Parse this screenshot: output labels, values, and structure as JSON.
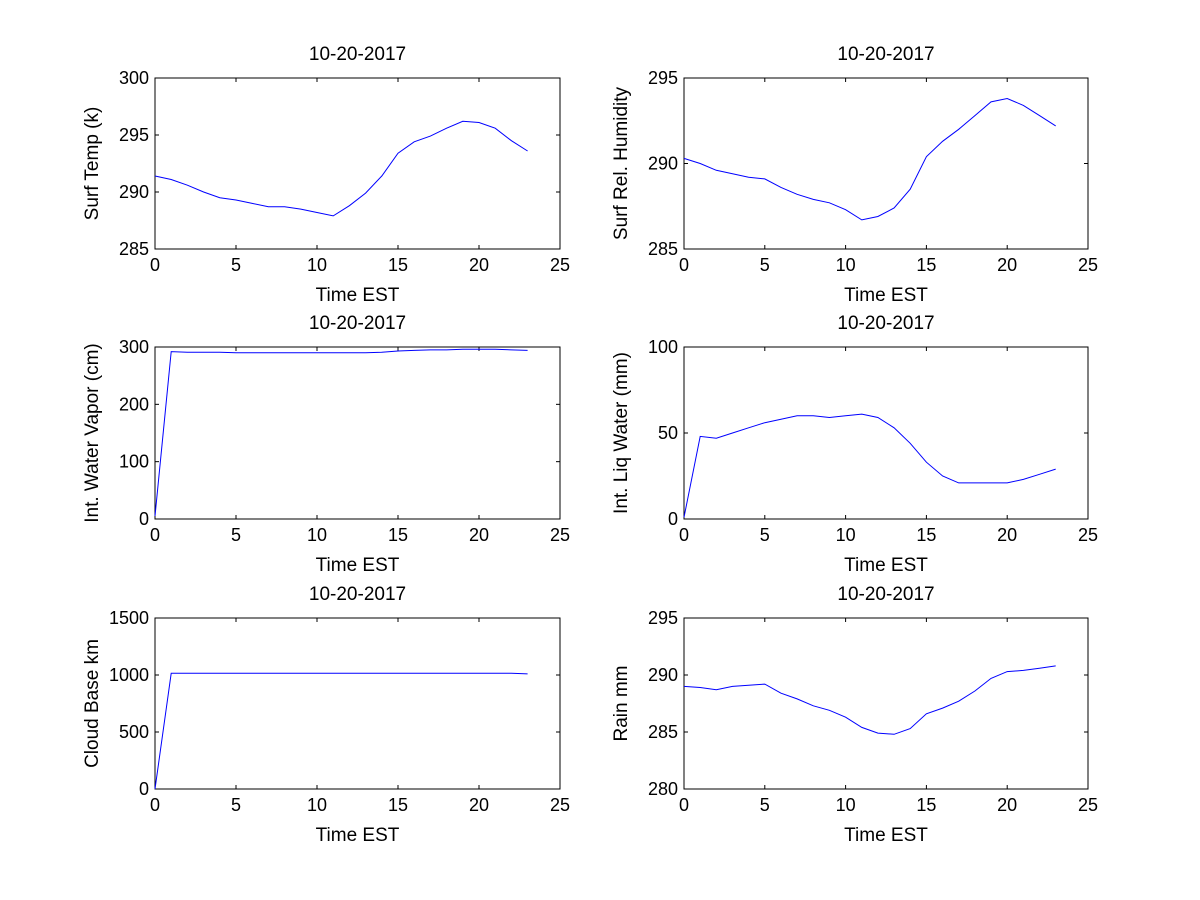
{
  "figure": {
    "background": "#ffffff",
    "line_color": "#0000ff"
  },
  "chart_data": [
    {
      "type": "line",
      "title": "10-20-2017",
      "xlabel": "Time EST",
      "ylabel": "Surf Temp (k)",
      "xlim": [
        0,
        25
      ],
      "ylim": [
        285,
        300
      ],
      "xticks": [
        0,
        5,
        10,
        15,
        20,
        25
      ],
      "yticks": [
        285,
        290,
        295,
        300
      ],
      "grid": false,
      "series": [
        {
          "x": [
            0,
            1,
            2,
            3,
            4,
            5,
            6,
            7,
            8,
            9,
            10,
            11,
            12,
            13,
            14,
            15,
            16,
            17,
            18,
            19,
            20,
            21,
            22,
            23
          ],
          "y": [
            291.4,
            291.1,
            290.6,
            290.0,
            289.5,
            289.3,
            289.0,
            288.7,
            288.7,
            288.5,
            288.2,
            287.9,
            288.8,
            289.9,
            291.4,
            293.4,
            294.4,
            294.9,
            295.6,
            296.2,
            296.1,
            295.6,
            294.5,
            293.6
          ]
        }
      ]
    },
    {
      "type": "line",
      "title": "10-20-2017",
      "xlabel": "Time EST",
      "ylabel": "Surf Rel. Humidity",
      "xlim": [
        0,
        25
      ],
      "ylim": [
        285,
        295
      ],
      "xticks": [
        0,
        5,
        10,
        15,
        20,
        25
      ],
      "yticks": [
        285,
        290,
        295
      ],
      "grid": false,
      "series": [
        {
          "x": [
            0,
            1,
            2,
            3,
            4,
            5,
            6,
            7,
            8,
            9,
            10,
            11,
            12,
            13,
            14,
            15,
            16,
            17,
            18,
            19,
            20,
            21,
            22,
            23
          ],
          "y": [
            290.3,
            290.0,
            289.6,
            289.4,
            289.2,
            289.1,
            288.6,
            288.2,
            287.9,
            287.7,
            287.3,
            286.7,
            286.9,
            287.4,
            288.5,
            290.4,
            291.3,
            292.0,
            292.8,
            293.6,
            293.8,
            293.4,
            292.8,
            292.2
          ]
        }
      ]
    },
    {
      "type": "line",
      "title": "10-20-2017",
      "xlabel": "Time EST",
      "ylabel": "Int. Water Vapor (cm)",
      "xlim": [
        0,
        25
      ],
      "ylim": [
        0,
        300
      ],
      "xticks": [
        0,
        5,
        10,
        15,
        20,
        25
      ],
      "yticks": [
        0,
        100,
        200,
        300
      ],
      "grid": false,
      "series": [
        {
          "x": [
            0,
            1,
            2,
            3,
            4,
            5,
            6,
            7,
            8,
            9,
            10,
            11,
            12,
            13,
            14,
            15,
            16,
            17,
            18,
            19,
            20,
            21,
            22,
            23
          ],
          "y": [
            5,
            292,
            291,
            291,
            291,
            290,
            290,
            290,
            290,
            290,
            290,
            290,
            290,
            290,
            291,
            293,
            294,
            295,
            295,
            296,
            296,
            296,
            295,
            294
          ]
        }
      ]
    },
    {
      "type": "line",
      "title": "10-20-2017",
      "xlabel": "Time EST",
      "ylabel": "Int. Liq Water (mm)",
      "xlim": [
        0,
        25
      ],
      "ylim": [
        0,
        100
      ],
      "xticks": [
        0,
        5,
        10,
        15,
        20,
        25
      ],
      "yticks": [
        0,
        50,
        100
      ],
      "grid": false,
      "series": [
        {
          "x": [
            0,
            1,
            2,
            3,
            4,
            5,
            6,
            7,
            8,
            9,
            10,
            11,
            12,
            13,
            14,
            15,
            16,
            17,
            18,
            19,
            20,
            21,
            22,
            23
          ],
          "y": [
            1,
            48,
            47,
            50,
            53,
            56,
            58,
            60,
            60,
            59,
            60,
            61,
            59,
            53,
            44,
            33,
            25,
            21,
            21,
            21,
            21,
            23,
            26,
            29
          ]
        }
      ]
    },
    {
      "type": "line",
      "title": "10-20-2017",
      "xlabel": "Time EST",
      "ylabel": "Cloud Base km",
      "xlim": [
        0,
        25
      ],
      "ylim": [
        0,
        1500
      ],
      "xticks": [
        0,
        5,
        10,
        15,
        20,
        25
      ],
      "yticks": [
        0,
        500,
        1000,
        1500
      ],
      "grid": false,
      "series": [
        {
          "x": [
            0,
            1,
            2,
            3,
            4,
            5,
            6,
            7,
            8,
            9,
            10,
            11,
            12,
            13,
            14,
            15,
            16,
            17,
            18,
            19,
            20,
            21,
            22,
            23
          ],
          "y": [
            0,
            1015,
            1015,
            1015,
            1015,
            1015,
            1015,
            1015,
            1015,
            1015,
            1015,
            1015,
            1015,
            1015,
            1015,
            1015,
            1015,
            1015,
            1015,
            1015,
            1015,
            1015,
            1015,
            1010
          ]
        }
      ]
    },
    {
      "type": "line",
      "title": "10-20-2017",
      "xlabel": "Time EST",
      "ylabel": "Rain mm",
      "xlim": [
        0,
        25
      ],
      "ylim": [
        280,
        295
      ],
      "xticks": [
        0,
        5,
        10,
        15,
        20,
        25
      ],
      "yticks": [
        280,
        285,
        290,
        295
      ],
      "grid": false,
      "series": [
        {
          "x": [
            0,
            1,
            2,
            3,
            4,
            5,
            6,
            7,
            8,
            9,
            10,
            11,
            12,
            13,
            14,
            15,
            16,
            17,
            18,
            19,
            20,
            21,
            22,
            23
          ],
          "y": [
            289.0,
            288.9,
            288.7,
            289.0,
            289.1,
            289.2,
            288.4,
            287.9,
            287.3,
            286.9,
            286.3,
            285.4,
            284.9,
            284.8,
            285.3,
            286.6,
            287.1,
            287.7,
            288.6,
            289.7,
            290.3,
            290.4,
            290.6,
            290.8
          ]
        }
      ]
    }
  ]
}
